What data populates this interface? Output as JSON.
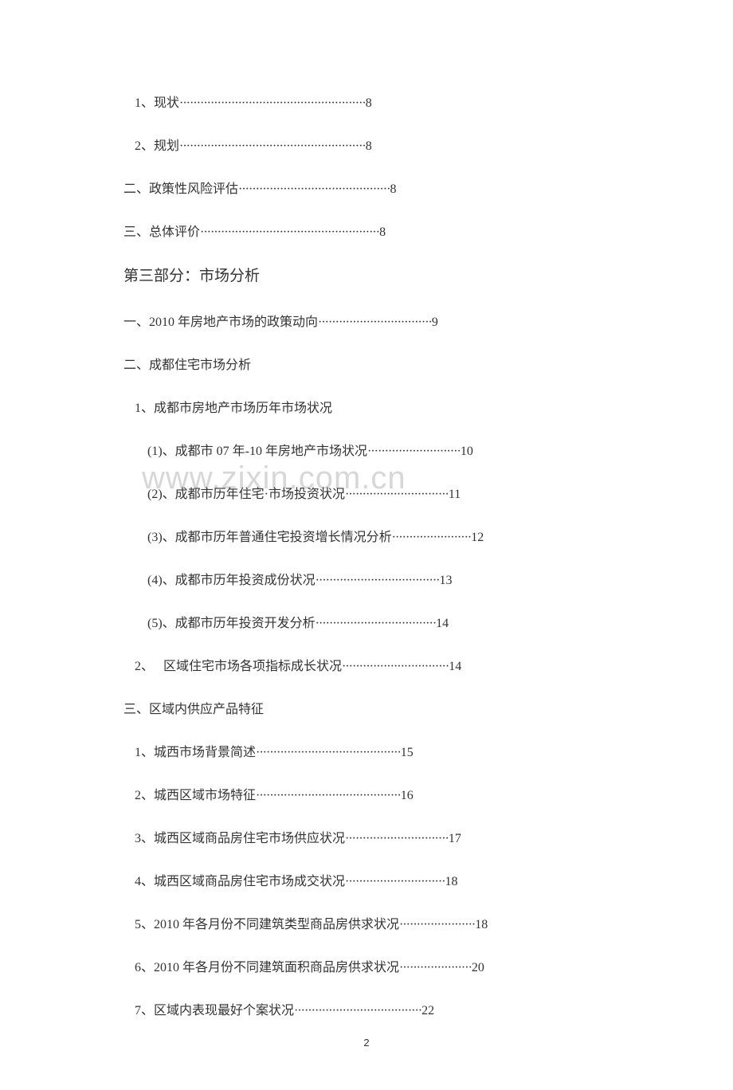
{
  "watermark": "www.zixin.com.cn",
  "page_number": "2",
  "colors": {
    "text": "#333333",
    "watermark": "#d7d7d7",
    "background": "#ffffff"
  },
  "fonts": {
    "body_size": 16,
    "heading_size": 19,
    "page_num_size": 13,
    "watermark_size": 40
  },
  "lines": [
    {
      "type": "toc",
      "indent": 1,
      "text": "1、现状",
      "dots": "······················································",
      "page": "8"
    },
    {
      "type": "toc",
      "indent": 1,
      "text": "2、规划",
      "dots": "······················································",
      "page": "8"
    },
    {
      "type": "toc",
      "indent": 0,
      "text": "二、政策性风险评估",
      "dots": "············································",
      "page": "8"
    },
    {
      "type": "toc",
      "indent": 0,
      "text": "三、总体评价",
      "dots": "····················································",
      "page": "8"
    },
    {
      "type": "heading",
      "text": "第三部分：市场分析"
    },
    {
      "type": "toc",
      "indent": 0,
      "text": "一、2010 年房地产市场的政策动向",
      "dots": "·································",
      "page": "9"
    },
    {
      "type": "toc",
      "indent": 0,
      "text": "二、成都住宅市场分析",
      "no_page": true
    },
    {
      "type": "toc",
      "indent": 1,
      "text": "1、成都市房地产市场历年市场状况",
      "no_page": true
    },
    {
      "type": "toc",
      "indent": 2,
      "text": "(1)、成都市 07 年-10 年房地产市场状况",
      "dots": "···························",
      "page": "10"
    },
    {
      "type": "toc",
      "indent": 2,
      "text": "(2)、成都市历年住宅·市场投资状况",
      "dots": "······························",
      "page": "11"
    },
    {
      "type": "toc",
      "indent": 2,
      "text": "(3)、成都市历年普通住宅投资增长情况分析",
      "dots": "·······················",
      "page": "12"
    },
    {
      "type": "toc",
      "indent": 2,
      "text": "(4)、成都市历年投资成份状况",
      "dots": "····································",
      "page": "13"
    },
    {
      "type": "toc",
      "indent": 2,
      "text": "(5)、成都市历年投资开发分析",
      "dots": "···································",
      "page": "14"
    },
    {
      "type": "toc",
      "indent": 1,
      "text": "2、　 区域住宅市场各项指标成长状况",
      "dots": "·······························",
      "page": "14"
    },
    {
      "type": "toc",
      "indent": 0,
      "text": "三、区域内供应产品特征",
      "no_page": true
    },
    {
      "type": "toc",
      "indent": 1,
      "text": "1、城西市场背景简述",
      "dots": "··········································",
      "page": "15"
    },
    {
      "type": "toc",
      "indent": 1,
      "text": "2、城西区域市场特征",
      "dots": "··········································",
      "page": "16"
    },
    {
      "type": "toc",
      "indent": 1,
      "text": "3、城西区域商品房住宅市场供应状况",
      "dots": "······························",
      "page": "17"
    },
    {
      "type": "toc",
      "indent": 1,
      "text": "4、城西区域商品房住宅市场成交状况",
      "dots": "·····························",
      "page": "18"
    },
    {
      "type": "toc",
      "indent": 1,
      "text": "5、2010 年各月份不同建筑类型商品房供求状况",
      "dots": "······················",
      "page": "18"
    },
    {
      "type": "toc",
      "indent": 1,
      "text": "6、2010 年各月份不同建筑面积商品房供求状况",
      "dots": "·····················",
      "page": "20"
    },
    {
      "type": "toc",
      "indent": 1,
      "text": "7、区域内表现最好个案状况",
      "dots": "·····································",
      "page": "22"
    }
  ]
}
